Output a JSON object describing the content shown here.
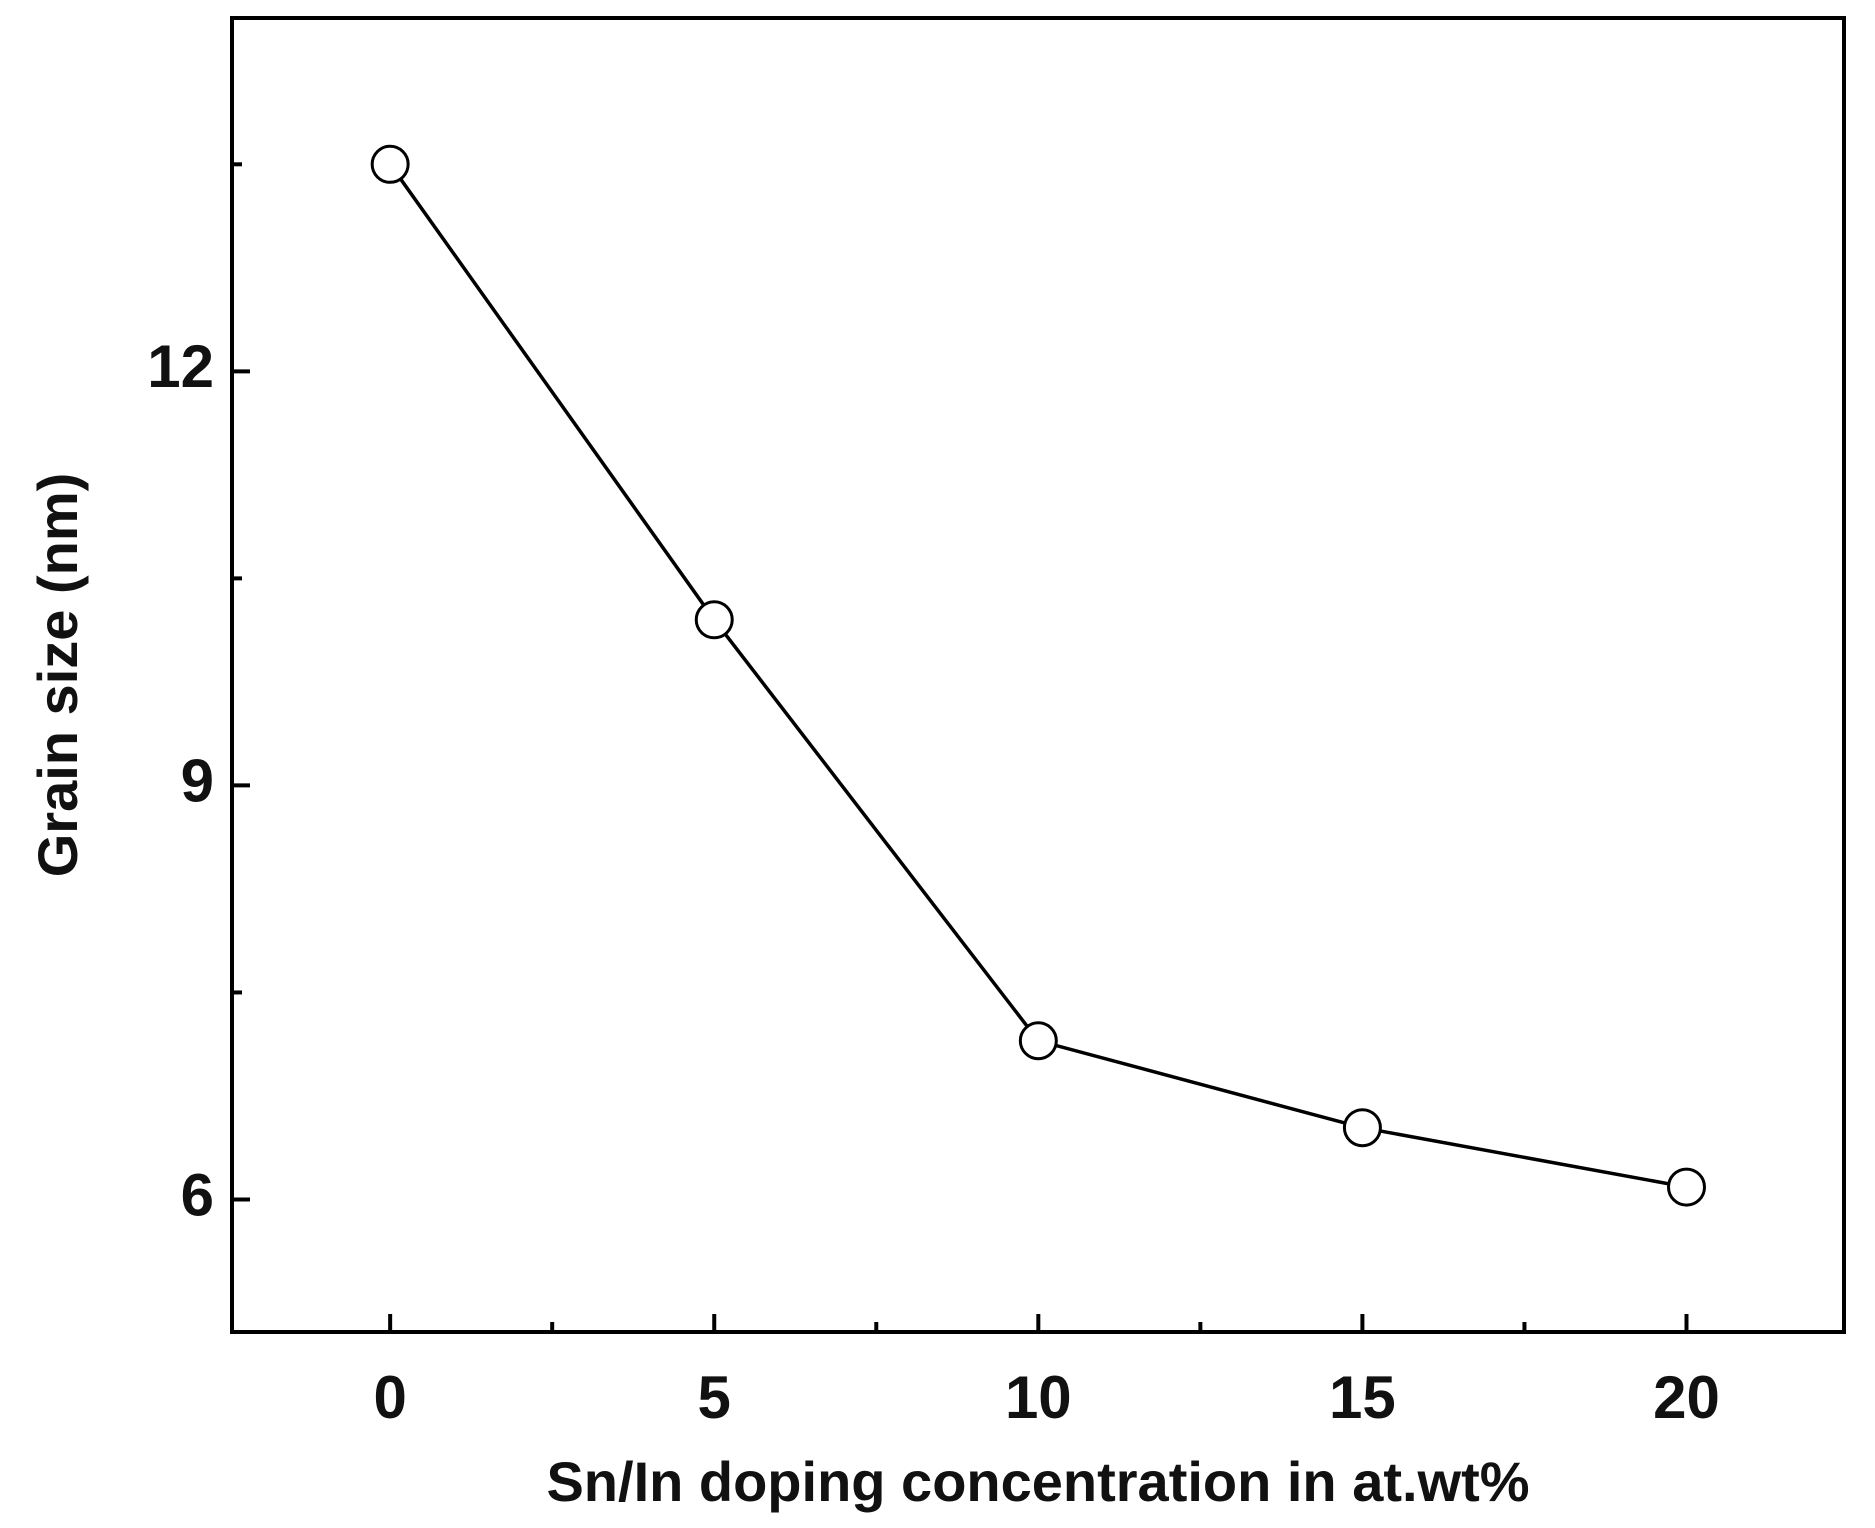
{
  "chart_data": {
    "type": "line",
    "x_label": "Sn/In doping concentration in at.wt%",
    "y_label": "Grain size (nm)",
    "x": [
      0,
      5,
      10,
      15,
      20
    ],
    "series": [
      {
        "values": [
          13.5,
          10.2,
          7.15,
          6.52,
          6.09
        ],
        "color": "#000000",
        "marker": "open-circle"
      }
    ],
    "xlim": [
      -2.44,
      22.43
    ],
    "xticks": [
      0,
      5,
      10,
      15,
      20
    ],
    "xminorticks": [
      2.5,
      7.5,
      12.5,
      17.5
    ],
    "ylim": [
      5.04,
      14.56
    ],
    "yticks": [
      6,
      9,
      12
    ],
    "yminorticks": [
      7.5,
      10.5,
      13.5
    ],
    "grid": false
  }
}
